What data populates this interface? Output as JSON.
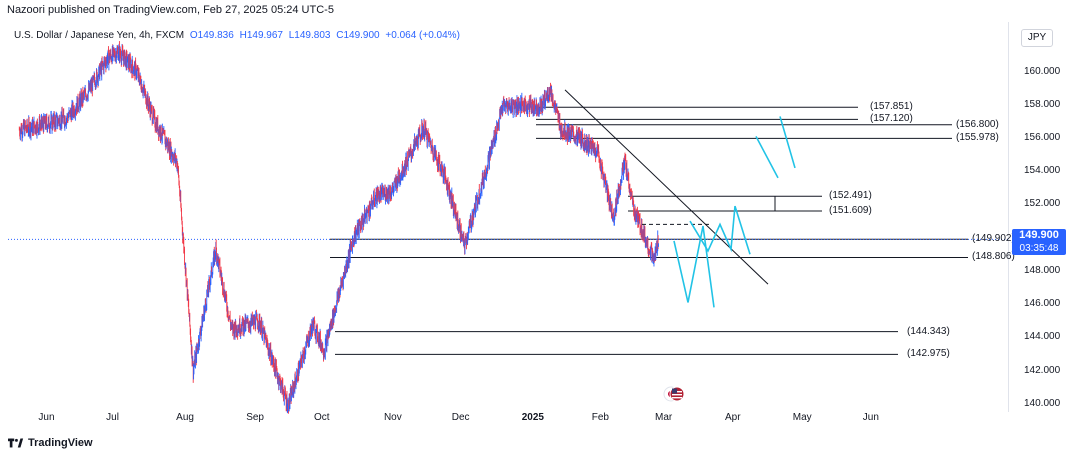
{
  "header": {
    "published": "Nazoori published on TradingView.com, Feb 27, 2025 05:24 UTC-5",
    "symbol": "U.S. Dollar / Japanese Yen, 4h, FXCM",
    "open": "O149.836",
    "high": "H149.967",
    "low": "L149.803",
    "close": "C149.900",
    "change": "+0.064 (+0.04%)"
  },
  "currency": "JPY",
  "price_label": {
    "price": "149.900",
    "countdown": "03:35:48"
  },
  "footer": {
    "brand": "TradingView"
  },
  "colors": {
    "up": "#2962ff",
    "down": "#f23645",
    "accent": "#2962ff",
    "projection": "#22c3e6",
    "level_line": "#131722"
  },
  "chart_data": {
    "type": "line",
    "title": "U.S. Dollar / Japanese Yen, 4h, FXCM",
    "x_tick_labels": [
      "Jun",
      "Jul",
      "Aug",
      "Sep",
      "Oct",
      "Nov",
      "Dec",
      "2025",
      "Feb",
      "Mar",
      "Apr",
      "May",
      "Jun"
    ],
    "y_tick_labels": [
      "160.000",
      "158.000",
      "156.000",
      "154.000",
      "152.000",
      "150.000",
      "148.000",
      "146.000",
      "144.000",
      "142.000",
      "140.000"
    ],
    "ylim": [
      139.2,
      161.0
    ],
    "grid": false,
    "series": [
      {
        "x": [
          "2024-05-20",
          "2024-05-30",
          "2024-06-10",
          "2024-06-20",
          "2024-06-28",
          "2024-07-03",
          "2024-07-11",
          "2024-07-19",
          "2024-07-29",
          "2024-08-05",
          "2024-08-15",
          "2024-08-22",
          "2024-09-03",
          "2024-09-16",
          "2024-09-27",
          "2024-10-02",
          "2024-10-15",
          "2024-10-25",
          "2024-11-01",
          "2024-11-15",
          "2024-11-25",
          "2024-12-03",
          "2024-12-12",
          "2024-12-20",
          "2024-12-27",
          "2025-01-06",
          "2025-01-10",
          "2025-01-15",
          "2025-01-24",
          "2025-01-31",
          "2025-02-07",
          "2025-02-12",
          "2025-02-16",
          "2025-02-20",
          "2025-02-25",
          "2025-02-27"
        ],
        "values": [
          156.5,
          156.8,
          157.2,
          158.9,
          160.8,
          161.2,
          160.0,
          157.0,
          154.5,
          142.0,
          149.3,
          144.5,
          145.0,
          139.9,
          144.8,
          143.2,
          150.0,
          152.5,
          152.8,
          156.6,
          153.5,
          149.5,
          153.8,
          157.9,
          158.0,
          157.9,
          158.9,
          156.5,
          155.9,
          155.2,
          151.2,
          154.6,
          151.7,
          150.4,
          148.6,
          149.9
        ]
      }
    ],
    "levels": [
      {
        "label": "(157.851)",
        "value": 157.851
      },
      {
        "label": "(157.120)",
        "value": 157.12
      },
      {
        "label": "(156.800)",
        "value": 156.8
      },
      {
        "label": "(155.978)",
        "value": 155.978
      },
      {
        "label": "(152.491)",
        "value": 152.491
      },
      {
        "label": "(151.609)",
        "value": 151.609
      },
      {
        "label": "(149.902)",
        "value": 149.902
      },
      {
        "label": "(148.806)",
        "value": 148.806
      },
      {
        "label": "(144.343)",
        "value": 144.343
      },
      {
        "label": "(142.975)",
        "value": 142.975
      }
    ],
    "last_price": 149.9
  }
}
